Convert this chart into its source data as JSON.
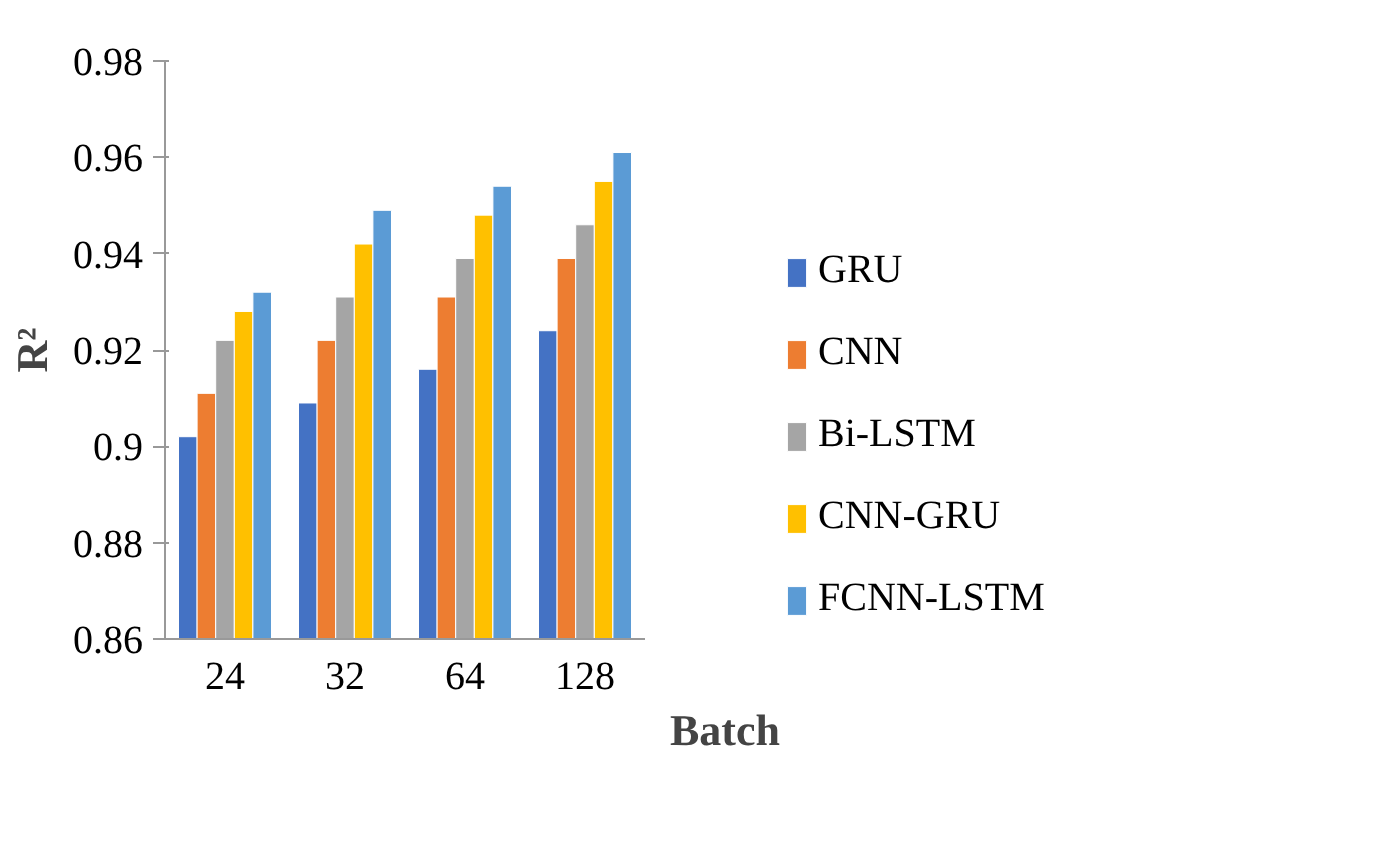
{
  "chart_data": {
    "type": "bar",
    "xlabel": "Batch",
    "ylabel": "R²",
    "categories": [
      "24",
      "32",
      "64",
      "128"
    ],
    "series": [
      {
        "name": "GRU",
        "color": "#4472c4",
        "values": [
          0.902,
          0.909,
          0.916,
          0.924
        ]
      },
      {
        "name": "CNN",
        "color": "#ed7d31",
        "values": [
          0.911,
          0.922,
          0.931,
          0.939
        ]
      },
      {
        "name": "Bi-LSTM",
        "color": "#a5a5a5",
        "values": [
          0.922,
          0.931,
          0.939,
          0.946
        ]
      },
      {
        "name": "CNN-GRU",
        "color": "#ffc000",
        "values": [
          0.928,
          0.942,
          0.948,
          0.955
        ]
      },
      {
        "name": "FCNN-LSTM",
        "color": "#5b9bd5",
        "values": [
          0.932,
          0.949,
          0.954,
          0.961
        ]
      }
    ],
    "ylim": [
      0.86,
      0.98
    ],
    "yticks": [
      0.86,
      0.88,
      0.9,
      0.92,
      0.94,
      0.96,
      0.98
    ],
    "grid": false,
    "legend": "right"
  }
}
